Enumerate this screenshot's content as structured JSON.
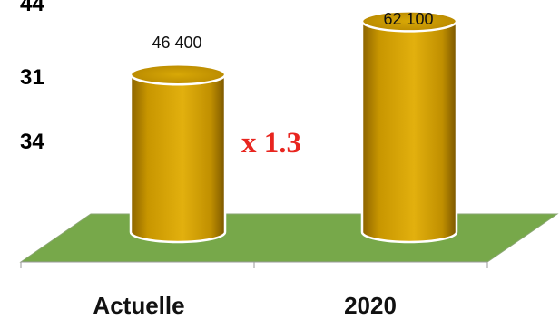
{
  "side_numbers": [
    {
      "text": "44",
      "color": "#111111"
    },
    {
      "text": "31",
      "color": "#111111"
    },
    {
      "text": "34",
      "color": "#e8251f"
    }
  ],
  "chart_data": {
    "type": "bar",
    "style": "3d-cylinder",
    "categories": [
      "Actuelle",
      "2020"
    ],
    "values": [
      46400,
      62100
    ],
    "data_labels": [
      "46 400",
      "62 100"
    ],
    "annotation": "x 1.3",
    "title": "",
    "xlabel": "",
    "ylabel": "",
    "grid": false,
    "legend": "none",
    "bar_color": "#d4a000",
    "floor_color": "#77a84a",
    "annotation_color": "#e8251f"
  }
}
